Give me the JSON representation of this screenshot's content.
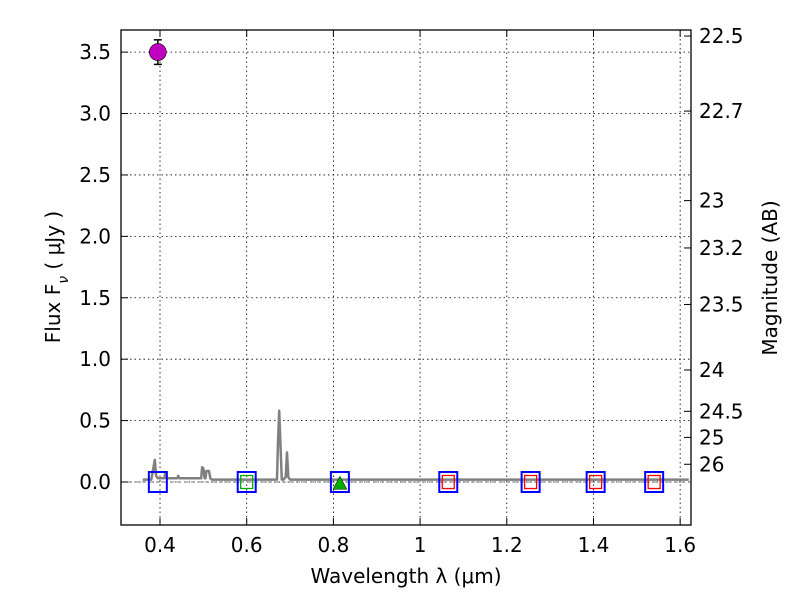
{
  "chart_data": {
    "type": "scatter",
    "xlabel": "Wavelength  λ (μm)",
    "ylabel": "Flux  F_ν  ( μJy )",
    "ylabel_right": "Magnitude (AB)",
    "xlim": [
      0.31,
      1.625
    ],
    "ylim": [
      -0.35,
      3.68
    ],
    "grid": true,
    "x_ticks": [
      0.4,
      0.6,
      0.8,
      1.0,
      1.2,
      1.4,
      1.6
    ],
    "x_tick_labels": [
      "0.4",
      "0.6",
      "0.8",
      "1",
      "1.2",
      "1.4",
      "1.6"
    ],
    "y_ticks": [
      0.0,
      0.5,
      1.0,
      1.5,
      2.0,
      2.5,
      3.0,
      3.5
    ],
    "y_tick_labels": [
      "0.0",
      "0.5",
      "1.0",
      "1.5",
      "2.0",
      "2.5",
      "3.0",
      "3.5"
    ],
    "magnitude_ticks": [
      "22.5",
      "22.7",
      "23",
      "23.2",
      "23.5",
      "24",
      "24.5",
      "25",
      "26"
    ],
    "colors": {
      "detection": "#bf00bf",
      "model_spectrum": "#808080",
      "model_box": "#0000ff",
      "upper_limit": "#ff0000",
      "filter_marker": "#00aa00"
    },
    "series": [
      {
        "name": "detection",
        "marker": "circle",
        "points": [
          {
            "x": 0.395,
            "y": 3.5,
            "yerr": 0.1
          }
        ]
      },
      {
        "name": "model_photometry",
        "marker": "open-square",
        "x": [
          0.395,
          0.6,
          0.815,
          1.065,
          1.255,
          1.405,
          1.54
        ],
        "y": [
          0.0,
          0.0,
          0.0,
          0.0,
          0.0,
          0.0,
          0.0
        ]
      },
      {
        "name": "upper_limits",
        "marker": "small-square",
        "x": [
          0.6,
          1.065,
          1.255,
          1.405,
          1.54
        ],
        "y": [
          0.0,
          0.0,
          0.0,
          0.0,
          0.0
        ]
      },
      {
        "name": "filter_marker",
        "marker": "triangle",
        "x": [
          0.815
        ],
        "y": [
          -0.01
        ]
      },
      {
        "name": "model_spectrum",
        "type": "line",
        "x": [
          0.36,
          0.38,
          0.385,
          0.388,
          0.391,
          0.395,
          0.41,
          0.412,
          0.415,
          0.43,
          0.44,
          0.442,
          0.445,
          0.47,
          0.495,
          0.497,
          0.5,
          0.503,
          0.505,
          0.507,
          0.51,
          0.513,
          0.516,
          0.52,
          0.55,
          0.6,
          0.65,
          0.67,
          0.672,
          0.675,
          0.678,
          0.681,
          0.685,
          0.69,
          0.693,
          0.696,
          0.7,
          0.75,
          0.8,
          0.9,
          1.0,
          1.2,
          1.4,
          1.62
        ],
        "y": [
          0.02,
          0.02,
          0.12,
          0.18,
          0.05,
          0.03,
          0.03,
          0.07,
          0.03,
          0.03,
          0.03,
          0.05,
          0.03,
          0.03,
          0.03,
          0.12,
          0.11,
          0.03,
          0.03,
          0.09,
          0.09,
          0.09,
          0.03,
          0.02,
          0.02,
          0.02,
          0.02,
          0.02,
          0.3,
          0.58,
          0.3,
          0.02,
          0.02,
          0.04,
          0.24,
          0.04,
          0.02,
          0.02,
          0.02,
          0.02,
          0.02,
          0.02,
          0.02,
          0.02
        ]
      }
    ]
  }
}
